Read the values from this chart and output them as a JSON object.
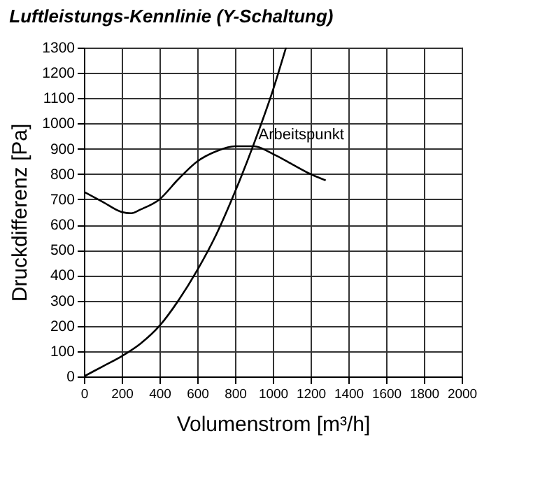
{
  "chart_data": {
    "type": "line",
    "title": "Luftleistungs-Kennlinie (Y-Schaltung)",
    "xlabel": "Volumenstrom [m³/h]",
    "ylabel": "Druckdifferenz [Pa]",
    "series": [
      {
        "color": "#000000",
        "x": [
          0,
          100,
          200,
          250,
          300,
          400,
          500,
          600,
          700,
          800,
          900,
          1000,
          1100,
          1200,
          1280
        ],
        "values": [
          730,
          690,
          650,
          645,
          660,
          700,
          780,
          850,
          890,
          910,
          910,
          880,
          840,
          800,
          775
        ]
      },
      {
        "color": "#000000",
        "x": [
          0,
          100,
          200,
          300,
          400,
          500,
          600,
          700,
          800,
          900,
          1000,
          1070
        ],
        "values": [
          0,
          40,
          80,
          130,
          200,
          300,
          420,
          560,
          730,
          920,
          1130,
          1300
        ]
      }
    ],
    "annotations": [
      {
        "text": "Arbeitspunkt",
        "x": 880,
        "y": 910
      }
    ],
    "xlim": [
      0,
      2000
    ],
    "xticks": [
      0,
      200,
      400,
      600,
      800,
      1000,
      1200,
      1400,
      1600,
      1800,
      2000
    ],
    "ylim": [
      0,
      1300
    ],
    "yticks": [
      0,
      100,
      200,
      300,
      400,
      500,
      600,
      700,
      800,
      900,
      1000,
      1100,
      1200,
      1300
    ],
    "grid": true,
    "marker": "none",
    "line_style": "solid"
  }
}
